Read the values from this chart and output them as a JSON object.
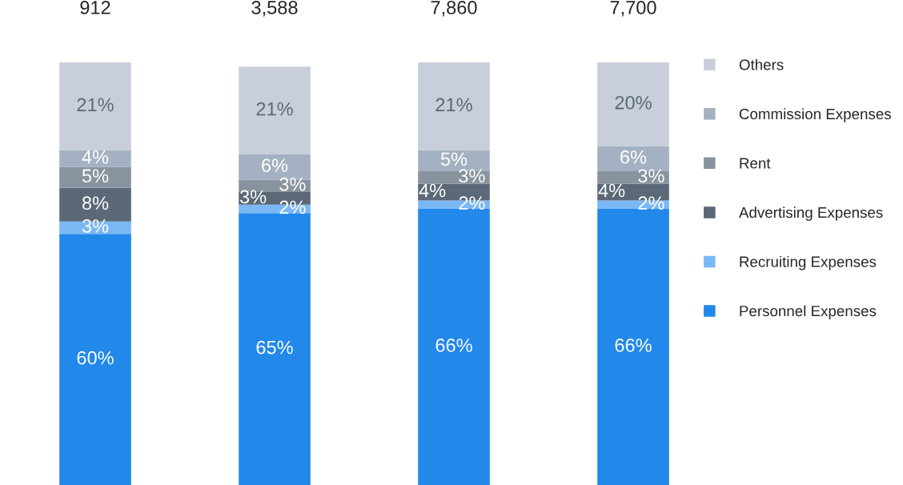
{
  "chart_data": {
    "type": "bar",
    "stacked": true,
    "categories": [
      null,
      null,
      null,
      null
    ],
    "series": [
      {
        "name": "Personnel Expenses",
        "color": "#2288ea",
        "values": [
          60,
          65,
          66,
          66
        ],
        "value_labels": [
          "60%",
          "65%",
          "66%",
          "66%"
        ]
      },
      {
        "name": "Recruiting Expenses",
        "color": "#7ab8f5",
        "values": [
          3,
          2,
          2,
          2
        ],
        "value_labels": [
          "3%",
          "2%",
          "2%",
          "2%"
        ]
      },
      {
        "name": "Advertising Expenses",
        "color": "#5b6877",
        "values": [
          8,
          3,
          4,
          4
        ],
        "value_labels": [
          "8%",
          "3%",
          "4%",
          "4%"
        ]
      },
      {
        "name": "Rent",
        "color": "#89939e",
        "values": [
          5,
          3,
          3,
          3
        ],
        "value_labels": [
          "5%",
          "3%",
          "3%",
          "3%"
        ]
      },
      {
        "name": "Commission Expenses",
        "color": "#a4b1c2",
        "values": [
          4,
          6,
          5,
          6
        ],
        "value_labels": [
          "4%",
          "6%",
          "5%",
          "6%"
        ]
      },
      {
        "name": "Others",
        "color": "#c8cfda",
        "values": [
          21,
          21,
          21,
          20
        ],
        "value_labels": [
          "21%",
          "21%",
          "21%",
          "20%"
        ]
      }
    ],
    "annotations": [
      "912",
      "3,588",
      "7,860",
      "7,700"
    ],
    "legend": "right"
  }
}
